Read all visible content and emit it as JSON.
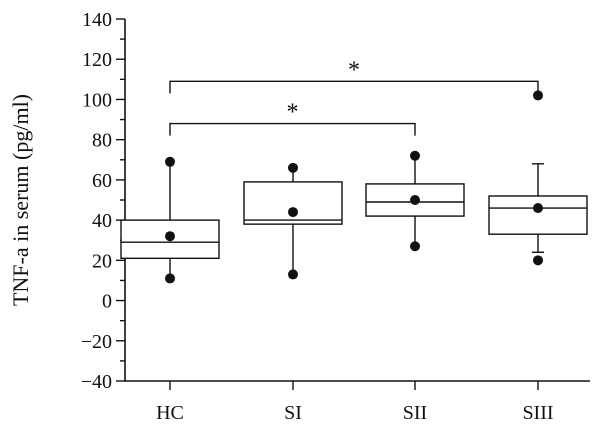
{
  "chart_data": {
    "type": "box",
    "title": "",
    "xlabel": "",
    "ylabel": "TNF-a in serum (pg/ml)",
    "ylim": [
      -40,
      140
    ],
    "yticks": [
      -40,
      -20,
      0,
      20,
      40,
      60,
      80,
      100,
      120,
      140
    ],
    "ytick_labels": [
      "−40",
      "−20",
      "0",
      "20",
      "40",
      "60",
      "80",
      "100",
      "120",
      "140"
    ],
    "categories": [
      "HC",
      "SI",
      "SII",
      "SIII"
    ],
    "boxes": [
      {
        "category": "HC",
        "whisker_low": 11,
        "q1": 21,
        "median": 29,
        "q3": 40,
        "whisker_high": 69,
        "mean": 32,
        "outliers": []
      },
      {
        "category": "SI",
        "whisker_low": 13,
        "q1": 38,
        "median": 40,
        "q3": 59,
        "whisker_high": 66,
        "mean": 44,
        "outliers": []
      },
      {
        "category": "SII",
        "whisker_low": 27,
        "q1": 42,
        "median": 49,
        "q3": 58,
        "whisker_high": 72,
        "mean": 50,
        "outliers": []
      },
      {
        "category": "SIII",
        "whisker_low": 24,
        "q1": 33,
        "median": 46,
        "q3": 52,
        "whisker_high": 68,
        "mean": 46,
        "outliers": [
          20,
          102
        ]
      }
    ],
    "significance": [
      {
        "from": "HC",
        "to": "SII",
        "y": 88,
        "label": "*"
      },
      {
        "from": "HC",
        "to": "SIII",
        "y": 109,
        "label": "*"
      }
    ],
    "grid": false,
    "legend": "none"
  }
}
